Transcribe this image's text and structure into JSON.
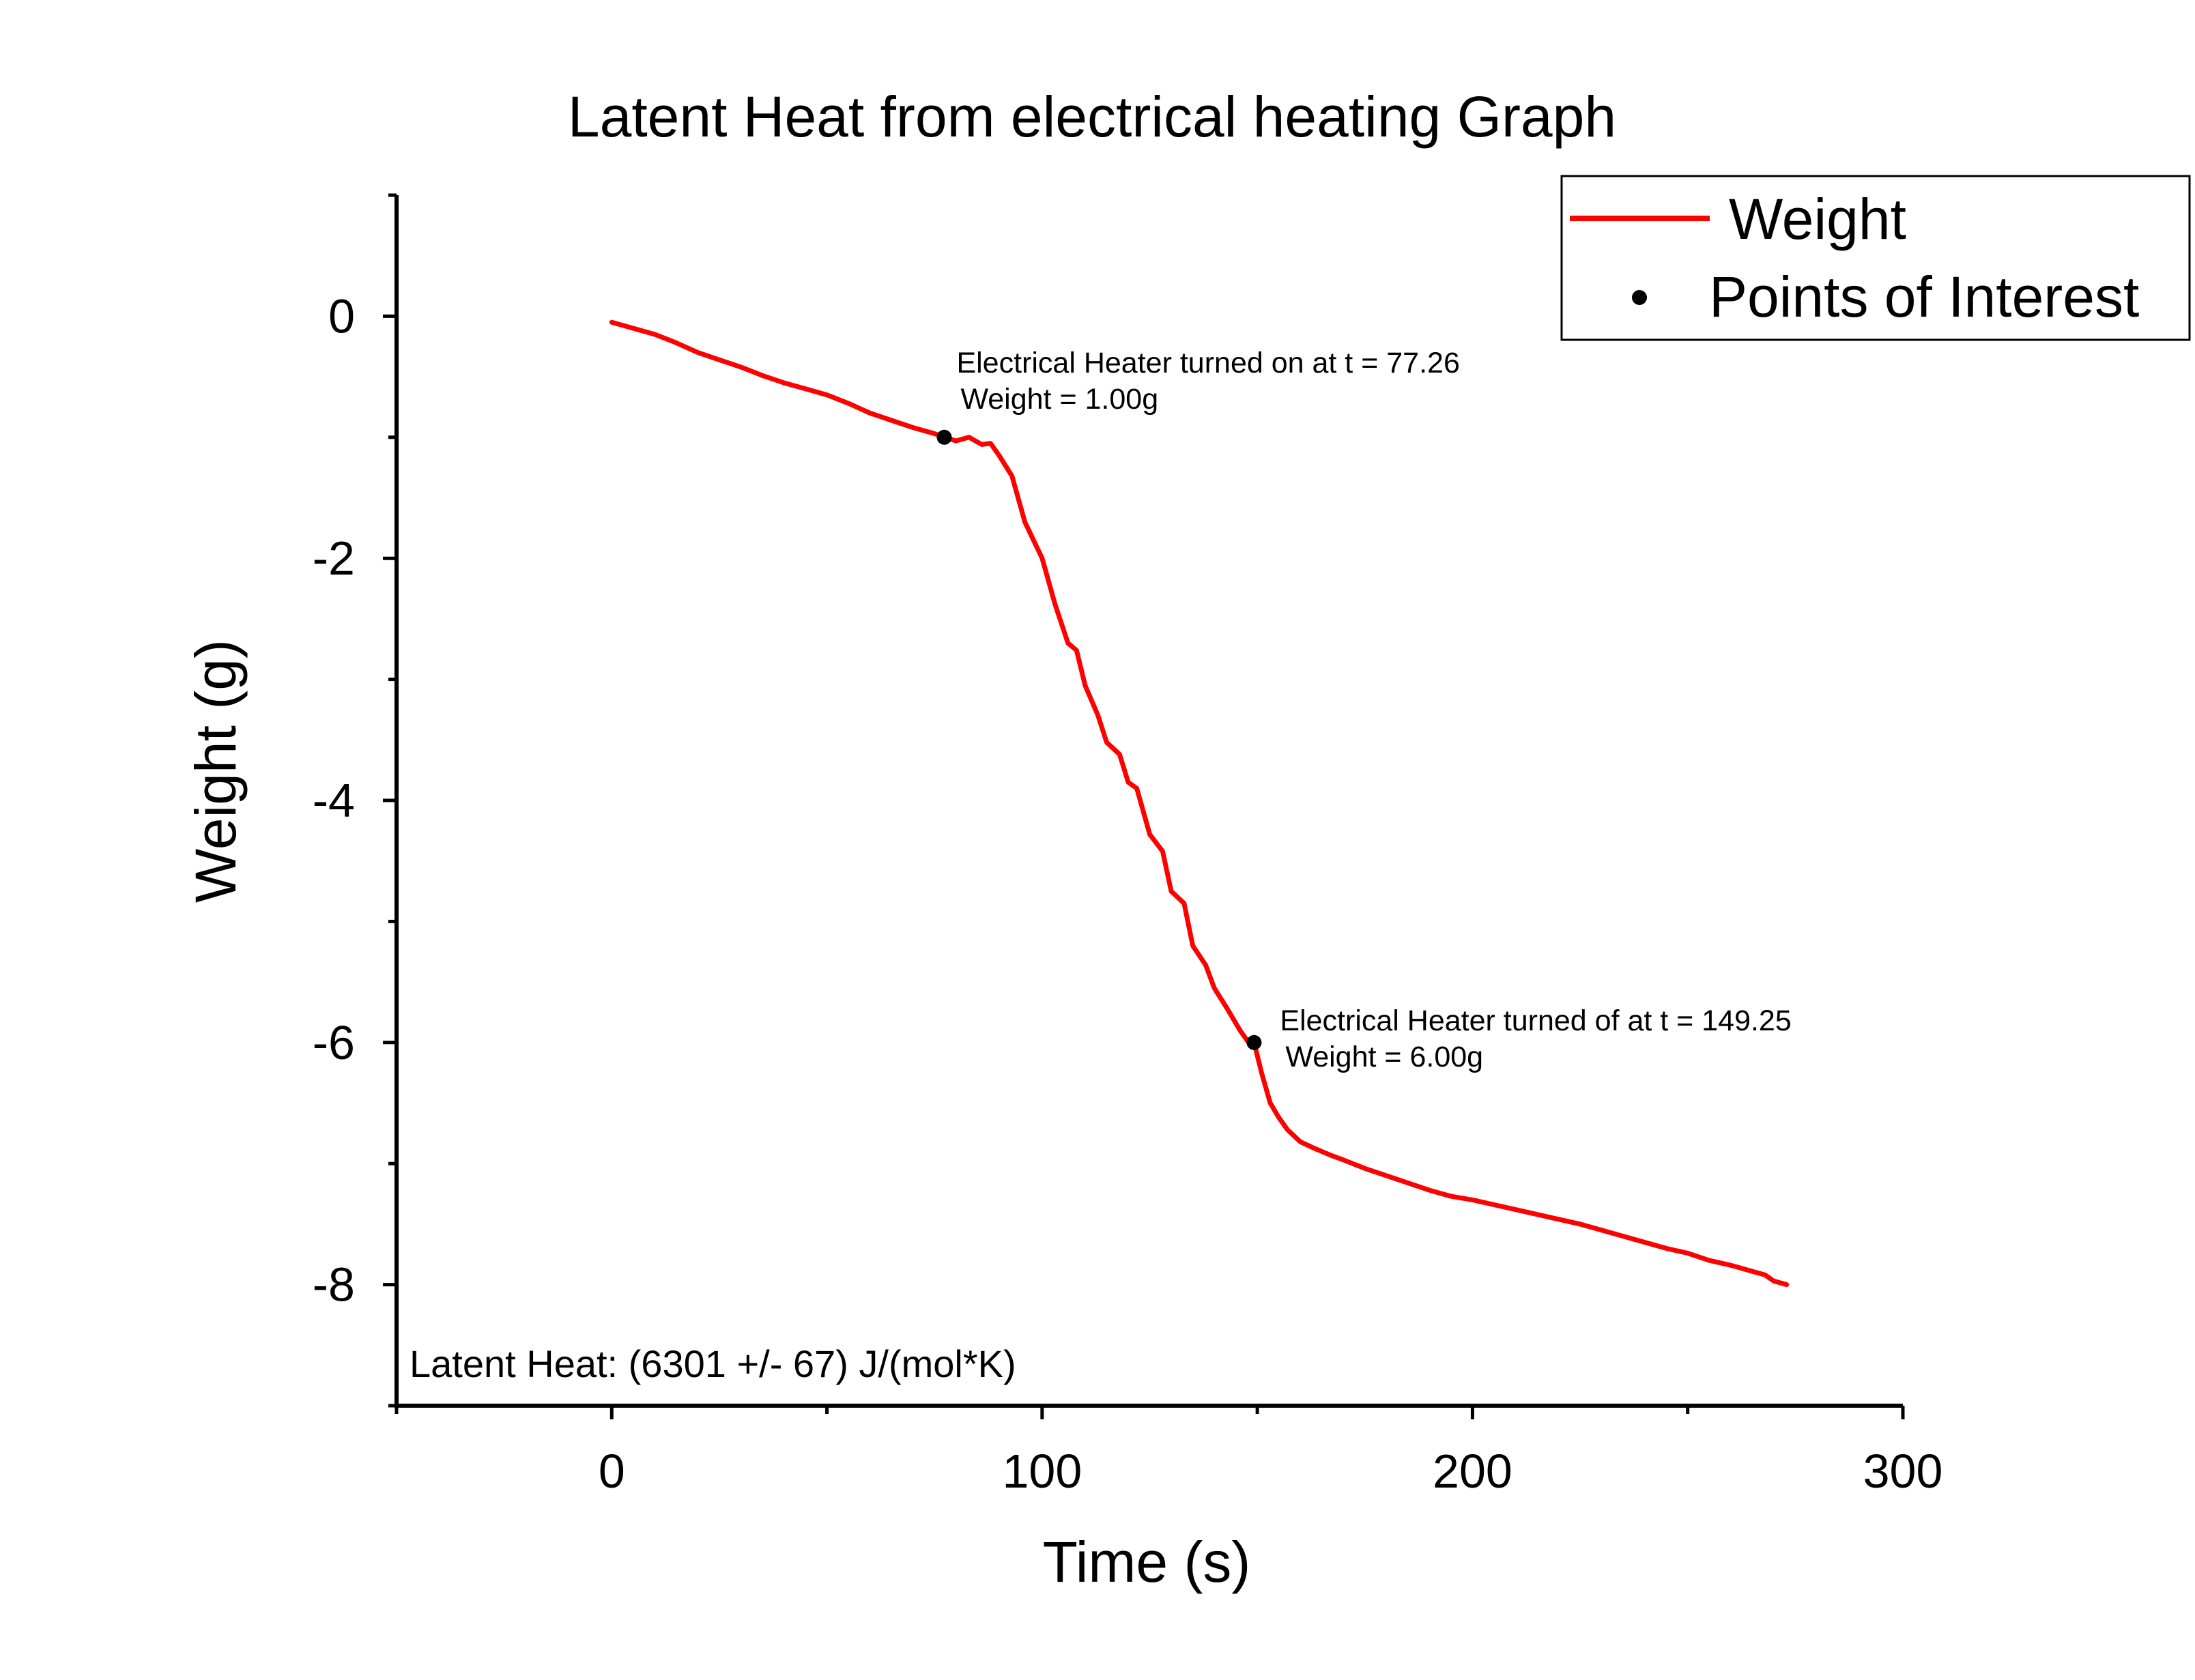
{
  "chart_data": {
    "type": "line",
    "title": "Latent Heat from electrical heating Graph",
    "xlabel": "Time (s)",
    "ylabel": "Weight (g)",
    "xlim": [
      -50,
      300
    ],
    "ylim": [
      -9,
      1
    ],
    "x_ticks": [
      0,
      100,
      200,
      300
    ],
    "x_tick_labels": [
      "0",
      "100",
      "200",
      "300"
    ],
    "x_minor_ticks": [
      -50,
      50,
      150,
      250
    ],
    "y_ticks": [
      0,
      -2,
      -4,
      -6,
      -8
    ],
    "y_tick_labels": [
      "0",
      "-2",
      "-4",
      "-6",
      "-8"
    ],
    "y_minor_ticks": [
      1,
      -1,
      -3,
      -5,
      -7,
      -9
    ],
    "grid": false,
    "legend_position": "top-right",
    "series": [
      {
        "name": "Weight",
        "kind": "line",
        "color": "#ff0000",
        "x": [
          0,
          5,
          10,
          15,
          20,
          25,
          30,
          35,
          40,
          45,
          50,
          55,
          60,
          65,
          70,
          75,
          77.26,
          80,
          83,
          86,
          88,
          90,
          93,
          96,
          100,
          103,
          106,
          108,
          110,
          113,
          115,
          118,
          120,
          122,
          125,
          128,
          130,
          133,
          135,
          138,
          140,
          143,
          146,
          148,
          149.25,
          151,
          153,
          155,
          157,
          160,
          163,
          167,
          170,
          175,
          180,
          185,
          190,
          195,
          200,
          205,
          210,
          215,
          220,
          225,
          230,
          235,
          240,
          245,
          250,
          255,
          260,
          265,
          268,
          270,
          273
        ],
        "y": [
          -0.05,
          -0.1,
          -0.15,
          -0.22,
          -0.3,
          -0.36,
          -0.42,
          -0.49,
          -0.55,
          -0.6,
          -0.65,
          -0.72,
          -0.8,
          -0.86,
          -0.92,
          -0.97,
          -1.0,
          -1.03,
          -1.0,
          -1.06,
          -1.05,
          -1.15,
          -1.32,
          -1.7,
          -2.0,
          -2.38,
          -2.7,
          -2.76,
          -3.05,
          -3.3,
          -3.52,
          -3.62,
          -3.85,
          -3.9,
          -4.28,
          -4.42,
          -4.75,
          -4.85,
          -5.2,
          -5.36,
          -5.55,
          -5.72,
          -5.9,
          -6.0,
          -6.0,
          -6.25,
          -6.5,
          -6.62,
          -6.72,
          -6.82,
          -6.87,
          -6.93,
          -6.97,
          -7.04,
          -7.1,
          -7.16,
          -7.22,
          -7.27,
          -7.3,
          -7.34,
          -7.38,
          -7.42,
          -7.46,
          -7.5,
          -7.55,
          -7.6,
          -7.65,
          -7.7,
          -7.74,
          -7.8,
          -7.84,
          -7.89,
          -7.92,
          -7.97,
          -8.0
        ]
      },
      {
        "name": "Points of Interest",
        "kind": "scatter",
        "color": "#000000",
        "x": [
          77.26,
          149.25
        ],
        "y": [
          -1.0,
          -6.0
        ]
      }
    ],
    "annotations": [
      {
        "line1": "Electrical Heater turned on at t = 77.26",
        "line2": "Weight = 1.00g",
        "x": 77.26,
        "y": -1.0
      },
      {
        "line1": "Electrical Heater turned of at t = 149.25",
        "line2": "Weight = 6.00g",
        "x": 149.25,
        "y": -6.0
      }
    ],
    "note": "Latent Heat: (6301 +/- 67) J/(mol*K)"
  }
}
